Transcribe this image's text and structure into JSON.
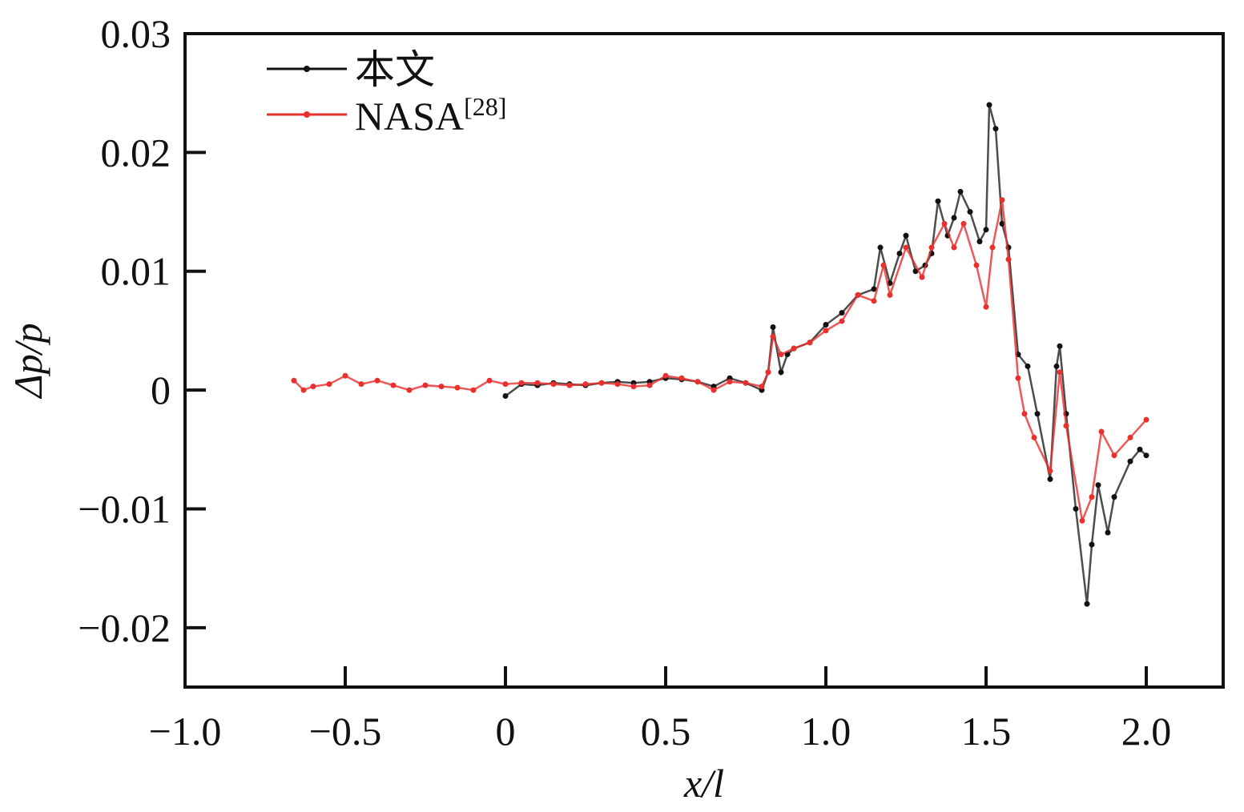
{
  "chart_data": {
    "type": "line",
    "title": "",
    "xlabel": "x/l",
    "ylabel": "Δp/p",
    "xlim": [
      -1.0,
      2.24
    ],
    "ylim": [
      -0.025,
      0.03
    ],
    "xticks": [
      -1.0,
      -0.5,
      0,
      0.5,
      1.0,
      1.5,
      2.0
    ],
    "xtick_labels": [
      "−1.0",
      "−0.5",
      "0",
      "0.5",
      "1.0",
      "1.5",
      "2.0"
    ],
    "yticks": [
      0.03,
      0.02,
      0.01,
      0,
      -0.01,
      -0.02
    ],
    "ytick_labels": [
      "0.03",
      "0.02",
      "0.01",
      "0",
      "−0.01",
      "−0.02"
    ],
    "grid": false,
    "legend_position": "top-left",
    "series": [
      {
        "name": "本文",
        "color": "#111111",
        "x": [
          0,
          0.05,
          0.1,
          0.15,
          0.2,
          0.25,
          0.3,
          0.35,
          0.4,
          0.45,
          0.5,
          0.55,
          0.6,
          0.65,
          0.7,
          0.75,
          0.8,
          0.82,
          0.835,
          0.86,
          0.88,
          0.9,
          0.95,
          1.0,
          1.05,
          1.1,
          1.15,
          1.17,
          1.2,
          1.23,
          1.25,
          1.28,
          1.31,
          1.33,
          1.35,
          1.38,
          1.4,
          1.42,
          1.45,
          1.48,
          1.5,
          1.51,
          1.53,
          1.55,
          1.57,
          1.6,
          1.63,
          1.66,
          1.7,
          1.72,
          1.73,
          1.75,
          1.78,
          1.815,
          1.83,
          1.85,
          1.88,
          1.9,
          1.95,
          1.98,
          2.0
        ],
        "y": [
          -0.0005,
          0.0005,
          0.0004,
          0.0006,
          0.0005,
          0.0004,
          0.0006,
          0.0007,
          0.0006,
          0.0007,
          0.001,
          0.0009,
          0.0007,
          0.0003,
          0.001,
          0.0006,
          0.0,
          0.0015,
          0.0053,
          0.0015,
          0.003,
          0.0035,
          0.004,
          0.0055,
          0.0065,
          0.008,
          0.0085,
          0.012,
          0.009,
          0.0115,
          0.013,
          0.01,
          0.0105,
          0.0115,
          0.0159,
          0.013,
          0.0145,
          0.0167,
          0.015,
          0.0125,
          0.0135,
          0.024,
          0.022,
          0.014,
          0.012,
          0.003,
          0.002,
          -0.002,
          -0.0075,
          0.002,
          0.0037,
          -0.002,
          -0.01,
          -0.018,
          -0.013,
          -0.008,
          -0.012,
          -0.009,
          -0.006,
          -0.005,
          -0.0055
        ]
      },
      {
        "name": "NASA",
        "superscript": "[28]",
        "color": "#e8302f",
        "x": [
          -0.66,
          -0.63,
          -0.6,
          -0.55,
          -0.5,
          -0.45,
          -0.4,
          -0.35,
          -0.3,
          -0.25,
          -0.2,
          -0.15,
          -0.1,
          -0.05,
          0,
          0.05,
          0.1,
          0.15,
          0.2,
          0.25,
          0.3,
          0.35,
          0.4,
          0.45,
          0.5,
          0.55,
          0.6,
          0.65,
          0.7,
          0.75,
          0.8,
          0.82,
          0.835,
          0.86,
          0.9,
          0.95,
          1.0,
          1.05,
          1.1,
          1.15,
          1.18,
          1.2,
          1.25,
          1.3,
          1.33,
          1.37,
          1.4,
          1.43,
          1.47,
          1.5,
          1.52,
          1.55,
          1.57,
          1.6,
          1.62,
          1.65,
          1.7,
          1.73,
          1.75,
          1.8,
          1.83,
          1.86,
          1.9,
          1.95,
          2.0
        ],
        "y": [
          0.0008,
          0.0,
          0.0003,
          0.0005,
          0.0012,
          0.0005,
          0.0008,
          0.0004,
          0.0,
          0.0004,
          0.0003,
          0.0002,
          0.0,
          0.0008,
          0.0005,
          0.0006,
          0.0006,
          0.0005,
          0.0004,
          0.0005,
          0.0006,
          0.0005,
          0.0003,
          0.0004,
          0.0012,
          0.001,
          0.0007,
          0.0,
          0.0007,
          0.0006,
          0.0003,
          0.0015,
          0.0045,
          0.003,
          0.0035,
          0.004,
          0.005,
          0.0058,
          0.008,
          0.0075,
          0.0105,
          0.008,
          0.012,
          0.0095,
          0.012,
          0.014,
          0.012,
          0.014,
          0.0105,
          0.007,
          0.012,
          0.016,
          0.011,
          0.001,
          -0.002,
          -0.004,
          -0.0068,
          0.0015,
          -0.003,
          -0.011,
          -0.009,
          -0.0035,
          -0.0055,
          -0.004,
          -0.0025
        ]
      }
    ]
  }
}
